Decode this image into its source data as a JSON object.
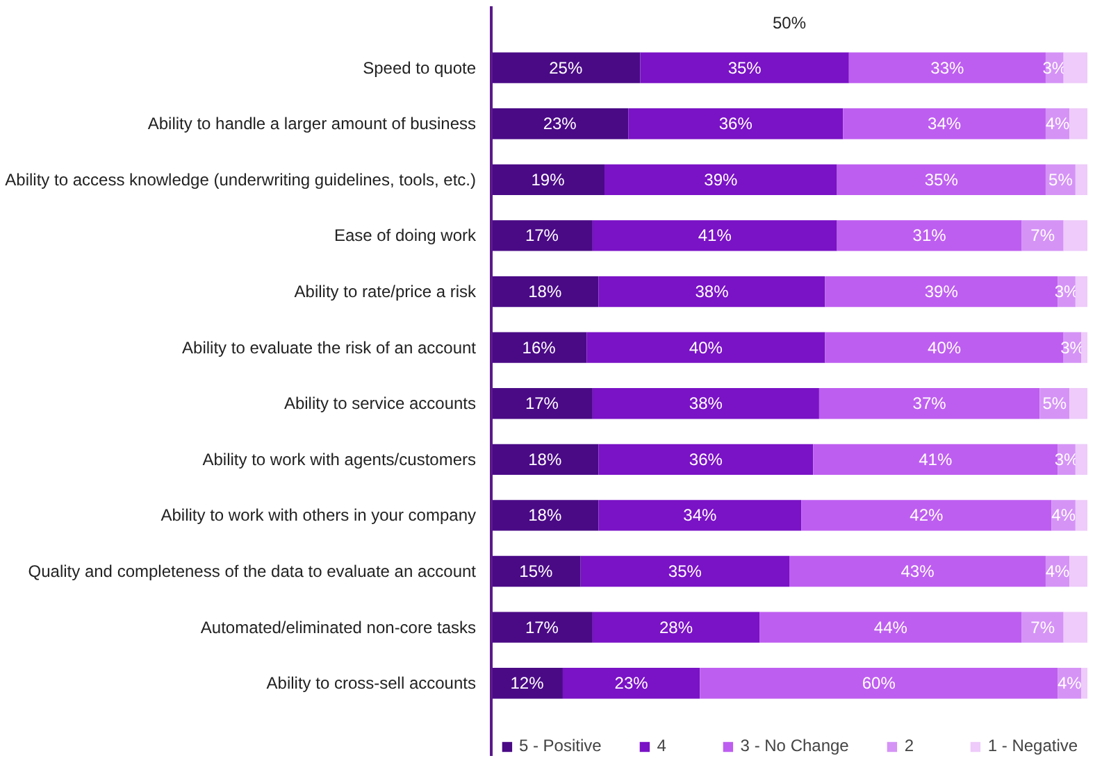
{
  "chart_data": {
    "type": "bar",
    "orientation": "horizontal",
    "stacked": true,
    "categories": [
      "Speed to quote",
      "Ability to handle a larger amount of business",
      "Ability to access knowledge (underwriting guidelines, tools, etc.)",
      "Ease of doing work",
      "Ability to rate/price a risk",
      "Ability to evaluate the risk of an account",
      "Ability to service accounts",
      "Ability to work with agents/customers",
      "Ability to work with others in your company",
      "Quality and completeness of the data to evaluate an account",
      "Automated/eliminated non-core tasks",
      "Ability to cross-sell accounts"
    ],
    "series": [
      {
        "name": "5 - Positive",
        "color": "#4a0a86",
        "values": [
          25,
          23,
          19,
          17,
          18,
          16,
          17,
          18,
          18,
          15,
          17,
          12
        ],
        "value_labels": [
          "25%",
          "23%",
          "19%",
          "17%",
          "18%",
          "16%",
          "17%",
          "18%",
          "18%",
          "15%",
          "17%",
          "12%"
        ]
      },
      {
        "name": "4",
        "color": "#7a12c6",
        "values": [
          35,
          36,
          39,
          41,
          38,
          40,
          38,
          36,
          34,
          35,
          28,
          23
        ],
        "value_labels": [
          "35%",
          "36%",
          "39%",
          "41%",
          "38%",
          "40%",
          "38%",
          "36%",
          "34%",
          "35%",
          "28%",
          "23%"
        ]
      },
      {
        "name": "3 - No Change",
        "color": "#be5ef0",
        "values": [
          33,
          34,
          35,
          31,
          39,
          40,
          37,
          41,
          42,
          43,
          44,
          60
        ],
        "value_labels": [
          "33%",
          "34%",
          "35%",
          "31%",
          "39%",
          "40%",
          "37%",
          "41%",
          "42%",
          "43%",
          "44%",
          "60%"
        ]
      },
      {
        "name": "2",
        "color": "#d593f6",
        "values": [
          3,
          4,
          5,
          7,
          3,
          3,
          5,
          3,
          4,
          4,
          7,
          4
        ],
        "value_labels": [
          "3%",
          "4%",
          "5%",
          "7%",
          "3%",
          "3%",
          "5%",
          "3%",
          "4%",
          "4%",
          "7%",
          "4%"
        ]
      },
      {
        "name": "1 - Negative",
        "color": "#eecbfa",
        "values": [
          4,
          3,
          2,
          4,
          2,
          1,
          3,
          2,
          2,
          3,
          4,
          1
        ],
        "value_labels": [
          null,
          null,
          null,
          null,
          null,
          null,
          null,
          null,
          null,
          null,
          null,
          null
        ]
      }
    ],
    "tick_labels": "y",
    "grid": false,
    "legend": "bottom",
    "annotations": [
      "50%"
    ]
  }
}
